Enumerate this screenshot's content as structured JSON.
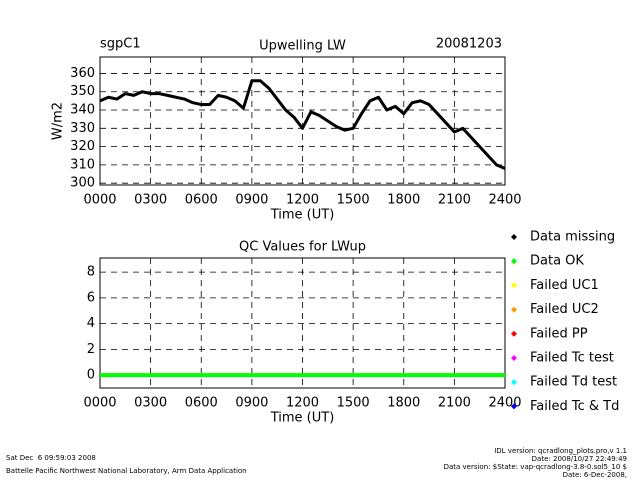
{
  "chart_data": [
    {
      "type": "line",
      "title": "Upwelling LW",
      "site": "sgpC1",
      "date": "20081203",
      "xlabel": "Time (UT)",
      "ylabel": "W/m2",
      "x": [
        0,
        0.5,
        1,
        1.5,
        2,
        2.5,
        3,
        3.5,
        4,
        4.5,
        5,
        5.5,
        6,
        6.5,
        7,
        7.5,
        8,
        8.5,
        9,
        9.5,
        10,
        10.5,
        11,
        11.5,
        12,
        12.5,
        13,
        13.5,
        14,
        14.5,
        15,
        15.5,
        16,
        16.5,
        17,
        17.5,
        18,
        18.5,
        19,
        19.5,
        20,
        20.5,
        21,
        21.5,
        22,
        22.5,
        23,
        23.5,
        24
      ],
      "series": [
        {
          "name": "Upwelling LW",
          "color": "#000000",
          "values": [
            345,
            347,
            346,
            349,
            348,
            350,
            349,
            349,
            348,
            347,
            346,
            344,
            343,
            343,
            348,
            347,
            345,
            341,
            356,
            356,
            352,
            346,
            340,
            336,
            330,
            339,
            337,
            334,
            331,
            329,
            330,
            338,
            345,
            347,
            340,
            342,
            338,
            344,
            345,
            343,
            338,
            333,
            328,
            330,
            325,
            320,
            315,
            310,
            308
          ]
        }
      ],
      "xlim": [
        0,
        24
      ],
      "xticks": [
        {
          "value": 0,
          "label": "0000"
        },
        {
          "value": 3,
          "label": "0300"
        },
        {
          "value": 6,
          "label": "0600"
        },
        {
          "value": 9,
          "label": "0900"
        },
        {
          "value": 12,
          "label": "1200"
        },
        {
          "value": 15,
          "label": "1500"
        },
        {
          "value": 18,
          "label": "1800"
        },
        {
          "value": 21,
          "label": "2100"
        },
        {
          "value": 24,
          "label": "2400"
        }
      ],
      "ylim": [
        299,
        369
      ],
      "yticks": [
        300,
        310,
        320,
        330,
        340,
        350,
        360
      ],
      "grid": true
    },
    {
      "type": "line",
      "title": "QC Values for LWup",
      "xlabel": "Time (UT)",
      "x": [
        0,
        24
      ],
      "series": [
        {
          "name": "Data OK",
          "color": "#00ff00",
          "values": [
            0,
            0
          ]
        }
      ],
      "xlim": [
        0,
        24
      ],
      "xticks": [
        {
          "value": 0,
          "label": "0000"
        },
        {
          "value": 3,
          "label": "0300"
        },
        {
          "value": 6,
          "label": "0600"
        },
        {
          "value": 9,
          "label": "0900"
        },
        {
          "value": 12,
          "label": "1200"
        },
        {
          "value": 15,
          "label": "1500"
        },
        {
          "value": 18,
          "label": "1800"
        },
        {
          "value": 21,
          "label": "2100"
        },
        {
          "value": 24,
          "label": "2400"
        }
      ],
      "ylim": [
        -1,
        9.1
      ],
      "yticks": [
        0,
        2,
        4,
        6,
        8
      ],
      "grid": true,
      "legend": [
        {
          "name": "Data missing",
          "color": "#000000"
        },
        {
          "name": "Data OK",
          "color": "#00ff00"
        },
        {
          "name": "Failed UC1",
          "color": "#ffff00"
        },
        {
          "name": "Failed UC2",
          "color": "#ff9900"
        },
        {
          "name": "Failed PP",
          "color": "#ff0000"
        },
        {
          "name": "Failed Tc test",
          "color": "#ff00ff"
        },
        {
          "name": "Failed Td test",
          "color": "#00ffff"
        },
        {
          "name": "Failed Tc & Td",
          "color": "#0000ff"
        }
      ]
    }
  ],
  "footer": {
    "timestamp": "Sat Dec  6 09:59:03 2008",
    "lab": "Battelle Pacific Northwest National Laboratory, Arm Data Application",
    "idl_version": "IDL version: qcradlong_plots.pro,v 1.1",
    "idl_date": "Date: 2008/10/27 22:49:49",
    "data_version": "Data version: $State: vap-qcradlong-3.8-0.sol5_10 $",
    "data_date": "Date: 6-Dec-2008,"
  }
}
